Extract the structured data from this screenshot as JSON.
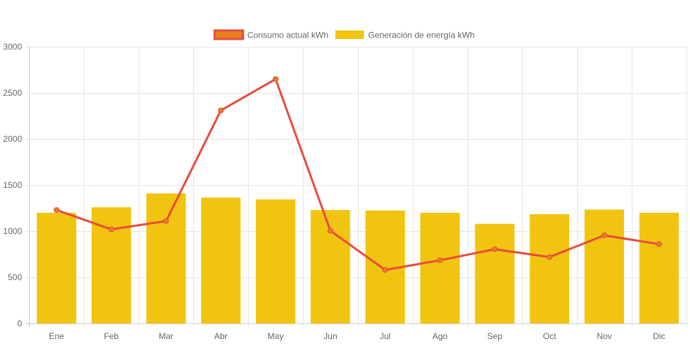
{
  "chart_data": {
    "type": "bar",
    "title": "",
    "xlabel": "",
    "ylabel": "",
    "categories": [
      "Ene",
      "Feb",
      "Mar",
      "Abr",
      "May",
      "Jun",
      "Jul",
      "Ago",
      "Sep",
      "Oct",
      "Nov",
      "Dic"
    ],
    "ylim": [
      0,
      3000
    ],
    "yticks": [
      0,
      500,
      1000,
      1500,
      2000,
      2500,
      3000
    ],
    "grid": true,
    "legend_position": "top",
    "series": [
      {
        "name": "Consumo actual kWh",
        "type": "line",
        "color": "#e74c3c",
        "point_color": "#e67e22",
        "values": [
          1230,
          1020,
          1110,
          2310,
          2650,
          1005,
          580,
          685,
          805,
          720,
          955,
          860
        ]
      },
      {
        "name": "Generación de energía kWh",
        "type": "bar",
        "color": "#f1c40f",
        "values": [
          1200,
          1260,
          1410,
          1365,
          1345,
          1230,
          1225,
          1200,
          1080,
          1185,
          1235,
          1200
        ]
      }
    ]
  }
}
